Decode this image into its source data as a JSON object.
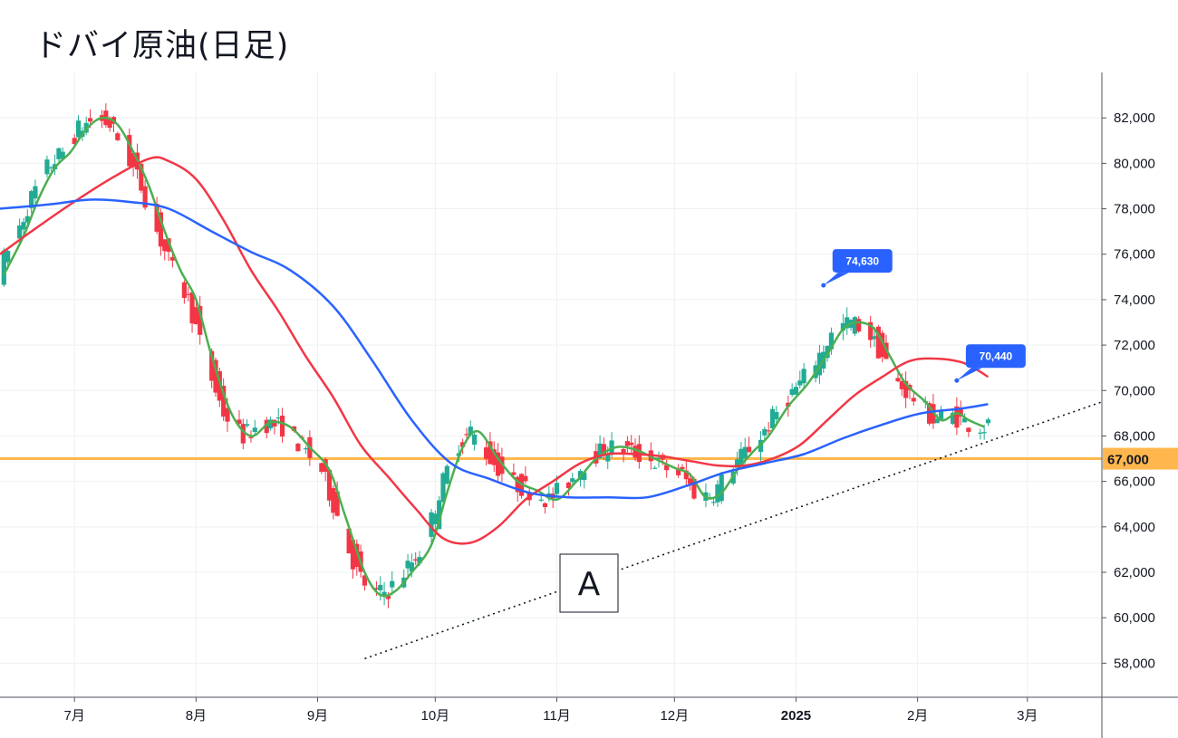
{
  "chart_data": {
    "type": "candlestick",
    "title": "ドバイ原油(日足)",
    "y_axis": {
      "range": [
        56500,
        84000
      ],
      "ticks": [
        58000,
        60000,
        62000,
        64000,
        66000,
        68000,
        70000,
        72000,
        74000,
        76000,
        78000,
        80000,
        82000
      ],
      "tick_labels": [
        "58,000",
        "60,000",
        "62,000",
        "64,000",
        "66,000",
        "68,000",
        "70,000",
        "72,000",
        "74,000",
        "76,000",
        "78,000",
        "80,000",
        "82,000"
      ]
    },
    "x_axis": {
      "range": [
        "2024-06-12",
        "2025-03-20"
      ],
      "ticks": [
        "2024-07-01",
        "2024-08-01",
        "2024-09-01",
        "2024-10-01",
        "2024-11-01",
        "2024-12-01",
        "2025-01-01",
        "2025-02-01",
        "2025-03-01"
      ],
      "tick_labels": [
        "7月",
        "8月",
        "9月",
        "10月",
        "11月",
        "12月",
        "2025",
        "2月",
        "3月"
      ]
    },
    "grid": true,
    "colors": {
      "up": "#22ab94",
      "down": "#f23645",
      "ma_short": "#4caf50",
      "ma_mid": "#f23645",
      "ma_long": "#2962ff",
      "support": "#ffb74d",
      "callout": "#2962ff"
    },
    "candles": [],
    "moving_averages": [
      {
        "color": "green",
        "points": [
          [
            "2024-06-13",
            75100
          ],
          [
            "2024-06-18",
            76800
          ],
          [
            "2024-06-22",
            78500
          ],
          [
            "2024-06-26",
            79800
          ],
          [
            "2024-06-30",
            80500
          ],
          [
            "2024-07-04",
            81500
          ],
          [
            "2024-07-08",
            82000
          ],
          [
            "2024-07-12",
            81700
          ],
          [
            "2024-07-16",
            80500
          ],
          [
            "2024-07-20",
            79000
          ],
          [
            "2024-07-24",
            77000
          ],
          [
            "2024-07-28",
            75300
          ],
          [
            "2024-08-01",
            74000
          ],
          [
            "2024-08-05",
            71500
          ],
          [
            "2024-08-10",
            69000
          ],
          [
            "2024-08-15",
            68000
          ],
          [
            "2024-08-20",
            68600
          ],
          [
            "2024-08-25",
            68400
          ],
          [
            "2024-08-30",
            67500
          ],
          [
            "2024-09-04",
            66500
          ],
          [
            "2024-09-08",
            64500
          ],
          [
            "2024-09-13",
            62000
          ],
          [
            "2024-09-17",
            61000
          ],
          [
            "2024-09-21",
            61200
          ],
          [
            "2024-09-25",
            62000
          ],
          [
            "2024-09-30",
            63200
          ],
          [
            "2024-10-04",
            65500
          ],
          [
            "2024-10-08",
            67500
          ],
          [
            "2024-10-12",
            68200
          ],
          [
            "2024-10-17",
            67000
          ],
          [
            "2024-10-22",
            66000
          ],
          [
            "2024-10-27",
            65600
          ],
          [
            "2024-11-01",
            65200
          ],
          [
            "2024-11-06",
            66000
          ],
          [
            "2024-11-11",
            67000
          ],
          [
            "2024-11-16",
            67500
          ],
          [
            "2024-11-21",
            67400
          ],
          [
            "2024-11-26",
            67000
          ],
          [
            "2024-12-01",
            66600
          ],
          [
            "2024-12-05",
            66300
          ],
          [
            "2024-12-09",
            65300
          ],
          [
            "2024-12-13",
            65500
          ],
          [
            "2024-12-17",
            66500
          ],
          [
            "2024-12-21",
            67300
          ],
          [
            "2024-12-25",
            68000
          ],
          [
            "2024-12-30",
            69300
          ],
          [
            "2025-01-04",
            70300
          ],
          [
            "2025-01-09",
            71600
          ],
          [
            "2025-01-13",
            72700
          ],
          [
            "2025-01-17",
            73000
          ],
          [
            "2025-01-21",
            72700
          ],
          [
            "2025-01-25",
            71500
          ],
          [
            "2025-01-29",
            70300
          ],
          [
            "2025-02-03",
            69500
          ],
          [
            "2025-02-07",
            68700
          ],
          [
            "2025-02-11",
            69000
          ],
          [
            "2025-02-14",
            68700
          ],
          [
            "2025-02-18",
            68400
          ]
        ]
      },
      {
        "color": "red",
        "points": [
          [
            "2024-06-12",
            76000
          ],
          [
            "2024-06-20",
            77000
          ],
          [
            "2024-06-30",
            78200
          ],
          [
            "2024-07-10",
            79300
          ],
          [
            "2024-07-20",
            80200
          ],
          [
            "2024-07-25",
            80100
          ],
          [
            "2024-08-01",
            79300
          ],
          [
            "2024-08-08",
            77500
          ],
          [
            "2024-08-15",
            75300
          ],
          [
            "2024-08-22",
            73500
          ],
          [
            "2024-08-29",
            71500
          ],
          [
            "2024-09-05",
            69700
          ],
          [
            "2024-09-12",
            67600
          ],
          [
            "2024-09-19",
            66200
          ],
          [
            "2024-09-26",
            64800
          ],
          [
            "2024-10-03",
            63500
          ],
          [
            "2024-10-10",
            63300
          ],
          [
            "2024-10-17",
            64000
          ],
          [
            "2024-10-24",
            65200
          ],
          [
            "2024-10-31",
            66000
          ],
          [
            "2024-11-07",
            66800
          ],
          [
            "2024-11-14",
            67200
          ],
          [
            "2024-11-21",
            67200
          ],
          [
            "2024-11-28",
            67100
          ],
          [
            "2024-12-05",
            66900
          ],
          [
            "2024-12-12",
            66700
          ],
          [
            "2024-12-19",
            66700
          ],
          [
            "2024-12-26",
            67000
          ],
          [
            "2025-01-02",
            67600
          ],
          [
            "2025-01-09",
            68700
          ],
          [
            "2025-01-16",
            69800
          ],
          [
            "2025-01-23",
            70600
          ],
          [
            "2025-01-30",
            71300
          ],
          [
            "2025-02-06",
            71400
          ],
          [
            "2025-02-13",
            71200
          ],
          [
            "2025-02-19",
            70600
          ]
        ]
      },
      {
        "color": "blue",
        "points": [
          [
            "2024-06-12",
            78000
          ],
          [
            "2024-06-25",
            78200
          ],
          [
            "2024-07-05",
            78400
          ],
          [
            "2024-07-15",
            78300
          ],
          [
            "2024-07-25",
            78000
          ],
          [
            "2024-08-05",
            77000
          ],
          [
            "2024-08-15",
            76100
          ],
          [
            "2024-08-25",
            75300
          ],
          [
            "2024-09-05",
            73700
          ],
          [
            "2024-09-15",
            71300
          ],
          [
            "2024-09-25",
            68700
          ],
          [
            "2024-10-05",
            66800
          ],
          [
            "2024-10-15",
            66100
          ],
          [
            "2024-10-25",
            65500
          ],
          [
            "2024-11-04",
            65300
          ],
          [
            "2024-11-14",
            65300
          ],
          [
            "2024-11-24",
            65300
          ],
          [
            "2024-12-04",
            65800
          ],
          [
            "2024-12-14",
            66400
          ],
          [
            "2024-12-24",
            66800
          ],
          [
            "2025-01-03",
            67200
          ],
          [
            "2025-01-13",
            67900
          ],
          [
            "2025-01-23",
            68500
          ],
          [
            "2025-02-02",
            69000
          ],
          [
            "2025-02-12",
            69200
          ],
          [
            "2025-02-19",
            69400
          ]
        ]
      }
    ],
    "support_level": {
      "value": 67000,
      "label": "67,000"
    },
    "trendline": {
      "from": [
        "2024-09-13",
        58200
      ],
      "to": [
        "2025-03-25",
        69500
      ],
      "style": "dotted"
    },
    "callouts": [
      {
        "date": "2025-01-08",
        "value": 74630,
        "label": "74,630"
      },
      {
        "date": "2025-02-11",
        "value": 70440,
        "label": "70,440"
      }
    ],
    "annotation": {
      "text": "A"
    }
  }
}
